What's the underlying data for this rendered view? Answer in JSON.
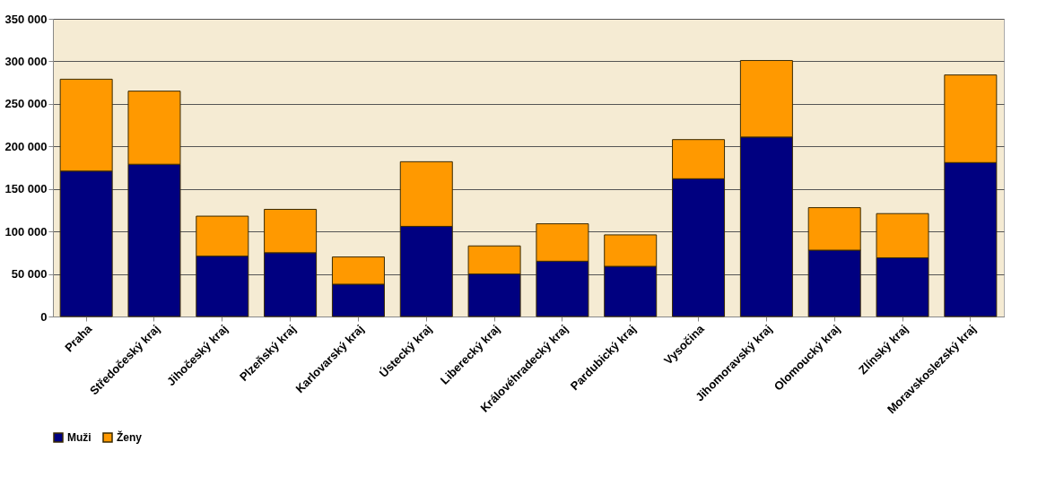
{
  "chart_data": {
    "type": "bar",
    "stacked": true,
    "categories": [
      "Praha",
      "Středočeský kraj",
      "Jihočeský kraj",
      "Plzeňský kraj",
      "Karlovarský kraj",
      "Ústecký kraj",
      "Liberecký kraj",
      "Královéhradecký kraj",
      "Pardubický kraj",
      "Vysočina",
      "Jihomoravský kraj",
      "Olomoucký kraj",
      "Zlínský kraj",
      "Moravskoslezský kraj"
    ],
    "series": [
      {
        "name": "Muži",
        "color": "#000080",
        "values": [
          171000,
          179000,
          71000,
          75000,
          38000,
          106000,
          50000,
          65000,
          59000,
          162000,
          211000,
          78000,
          69000,
          181000
        ]
      },
      {
        "name": "Ženy",
        "color": "#ff9900",
        "values": [
          108000,
          86000,
          47000,
          51000,
          32000,
          76000,
          33000,
          44000,
          37000,
          46000,
          90000,
          50000,
          52000,
          103000
        ]
      }
    ],
    "ylim": [
      0,
      350000
    ],
    "yticks": [
      {
        "value": 0,
        "label": "0"
      },
      {
        "value": 50000,
        "label": "50 000"
      },
      {
        "value": 100000,
        "label": "100 000"
      },
      {
        "value": 150000,
        "label": "150 000"
      },
      {
        "value": 200000,
        "label": "200 000"
      },
      {
        "value": 250000,
        "label": "250 000"
      },
      {
        "value": 300000,
        "label": "300 000"
      },
      {
        "value": 350000,
        "label": "350 000"
      }
    ],
    "grid": "y",
    "legend": "bottom"
  }
}
